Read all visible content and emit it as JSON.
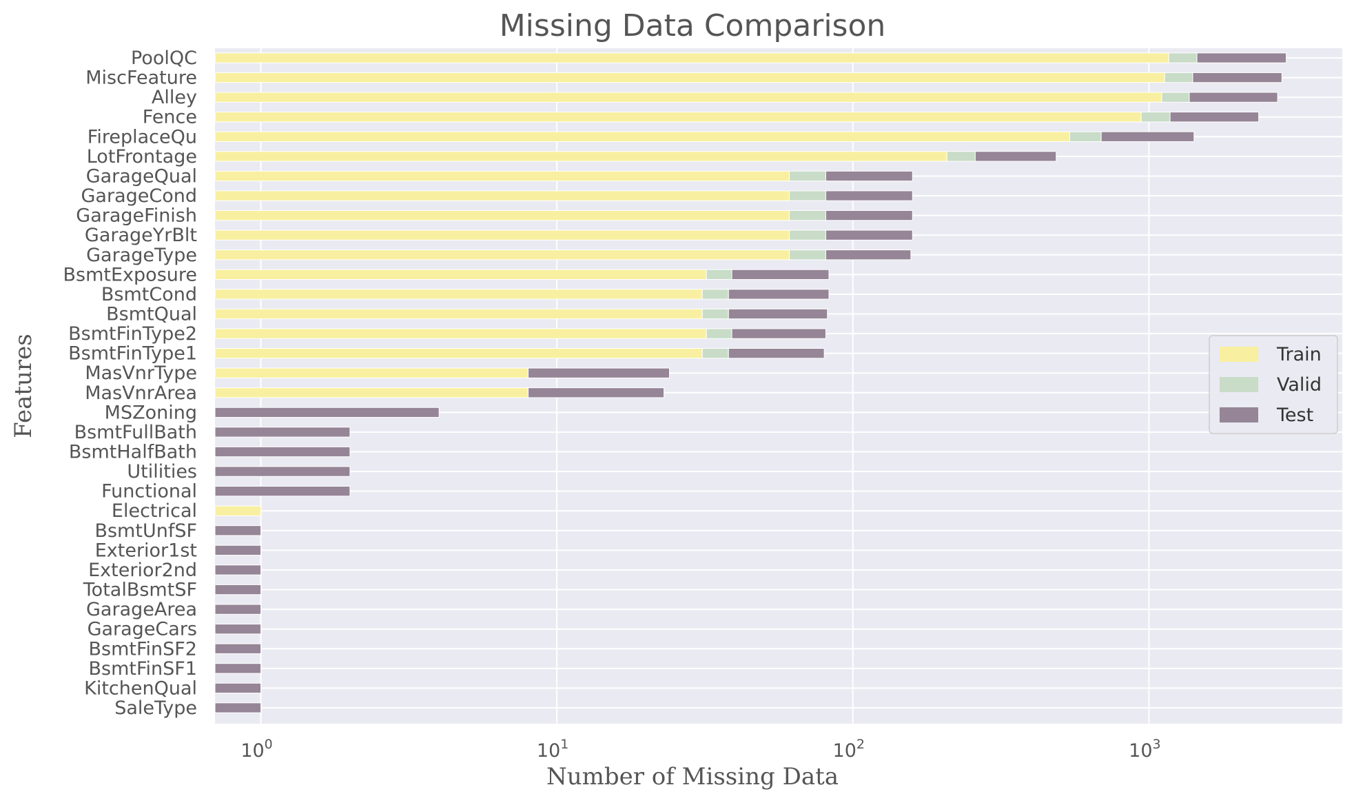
{
  "chart_data": {
    "type": "bar",
    "orientation": "horizontal",
    "stacked": true,
    "title": "Missing Data Comparison",
    "xlabel": "Number of Missing Data",
    "ylabel": "Features",
    "x_scale": "log",
    "xlim": [
      0.7,
      4500
    ],
    "x_ticks": [
      {
        "value": 1,
        "base": "10",
        "exp": "0"
      },
      {
        "value": 10,
        "base": "10",
        "exp": "1"
      },
      {
        "value": 100,
        "base": "10",
        "exp": "2"
      },
      {
        "value": 1000,
        "base": "10",
        "exp": "3"
      }
    ],
    "grid": true,
    "legend": "center-right",
    "categories": [
      "PoolQC",
      "MiscFeature",
      "Alley",
      "Fence",
      "FireplaceQu",
      "LotFrontage",
      "GarageQual",
      "GarageCond",
      "GarageFinish",
      "GarageYrBlt",
      "GarageType",
      "BsmtExposure",
      "BsmtCond",
      "BsmtQual",
      "BsmtFinType2",
      "BsmtFinType1",
      "MasVnrType",
      "MasVnrArea",
      "MSZoning",
      "BsmtFullBath",
      "BsmtHalfBath",
      "Utilities",
      "Functional",
      "Electrical",
      "BsmtUnfSF",
      "Exterior1st",
      "Exterior2nd",
      "TotalBsmtSF",
      "GarageArea",
      "GarageCars",
      "BsmtFinSF2",
      "BsmtFinSF1",
      "KitchenQual",
      "SaleType"
    ],
    "series": [
      {
        "name": "Train",
        "color": "#f8f0a0",
        "values": [
          1167,
          1130,
          1105,
          942,
          540,
          208,
          61,
          61,
          61,
          61,
          61,
          32,
          31,
          31,
          32,
          31,
          8,
          8,
          0,
          0,
          0,
          0,
          0,
          1,
          0,
          0,
          0,
          0,
          0,
          0,
          0,
          0,
          0,
          0
        ]
      },
      {
        "name": "Valid",
        "color": "#c8dcc8",
        "values": [
          286,
          276,
          264,
          237,
          150,
          51,
          20,
          20,
          20,
          20,
          20,
          7,
          7,
          7,
          7,
          7,
          0,
          0,
          0,
          0,
          0,
          0,
          0,
          0,
          0,
          0,
          0,
          0,
          0,
          0,
          0,
          0,
          0,
          0
        ]
      },
      {
        "name": "Test",
        "color": "#958596",
        "values": [
          1456,
          1407,
          1352,
          1169,
          730,
          227,
          78,
          78,
          78,
          78,
          76,
          44,
          45,
          44,
          42,
          42,
          16,
          15,
          4,
          2,
          2,
          2,
          2,
          0,
          1,
          1,
          1,
          1,
          1,
          1,
          1,
          1,
          1,
          1
        ]
      }
    ]
  }
}
